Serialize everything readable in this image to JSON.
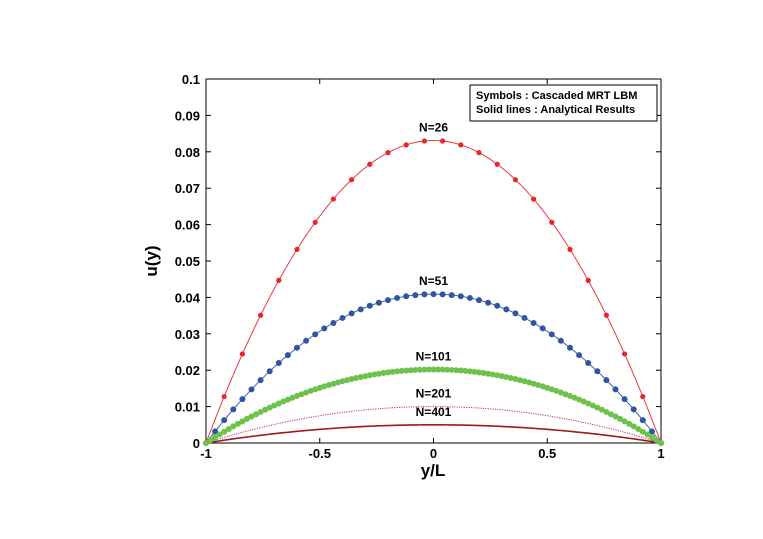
{
  "chart_data": {
    "type": "line",
    "title": "",
    "xlabel": "y/L",
    "ylabel": "u(y)",
    "xlim": [
      -1,
      1
    ],
    "ylim": [
      0,
      0.1
    ],
    "x_ticks": [
      -1,
      -0.5,
      0,
      0.5,
      1
    ],
    "x_tick_labels": [
      "-1",
      "-0.5",
      "0",
      "0.5",
      "1"
    ],
    "y_ticks": [
      0,
      0.01,
      0.02,
      0.03,
      0.04,
      0.05,
      0.06,
      0.07,
      0.08,
      0.09,
      0.1
    ],
    "y_tick_labels": [
      "0",
      "0.01",
      "0.02",
      "0.03",
      "0.04",
      "0.05",
      "0.06",
      "0.07",
      "0.08",
      "0.09",
      "0.1"
    ],
    "grid": false,
    "legend": {
      "placement": "top-right",
      "lines": [
        "Symbols : Cascaded MRT LBM",
        "Solid lines : Analytical Results"
      ]
    },
    "profile": "parabolic: u(y) = peak * (1 - (y/L)^2)",
    "series": [
      {
        "name": "N=26",
        "label": "N=26",
        "peak": 0.0831,
        "symbol_points": 26,
        "color": "#e8262a",
        "line_color": "#e8262a",
        "line_style": "solid"
      },
      {
        "name": "N=51",
        "label": "N=51",
        "peak": 0.0409,
        "symbol_points": 51,
        "color": "#2f55a4",
        "line_color": "#2f55a4",
        "line_style": "solid"
      },
      {
        "name": "N=101",
        "label": "N=101",
        "peak": 0.0202,
        "symbol_points": 101,
        "color": "#6cc24a",
        "line_color": "#6cc24a",
        "line_style": "solid"
      },
      {
        "name": "N=201",
        "label": "N=201",
        "peak": 0.01,
        "symbol_points": 0,
        "color": "#b0308a",
        "line_color": "#b0308a",
        "line_style": "dotted"
      },
      {
        "name": "N=401",
        "label": "N=401",
        "peak": 0.005,
        "symbol_points": 0,
        "color": "#a01818",
        "line_color": "#a01818",
        "line_style": "solid"
      }
    ]
  }
}
